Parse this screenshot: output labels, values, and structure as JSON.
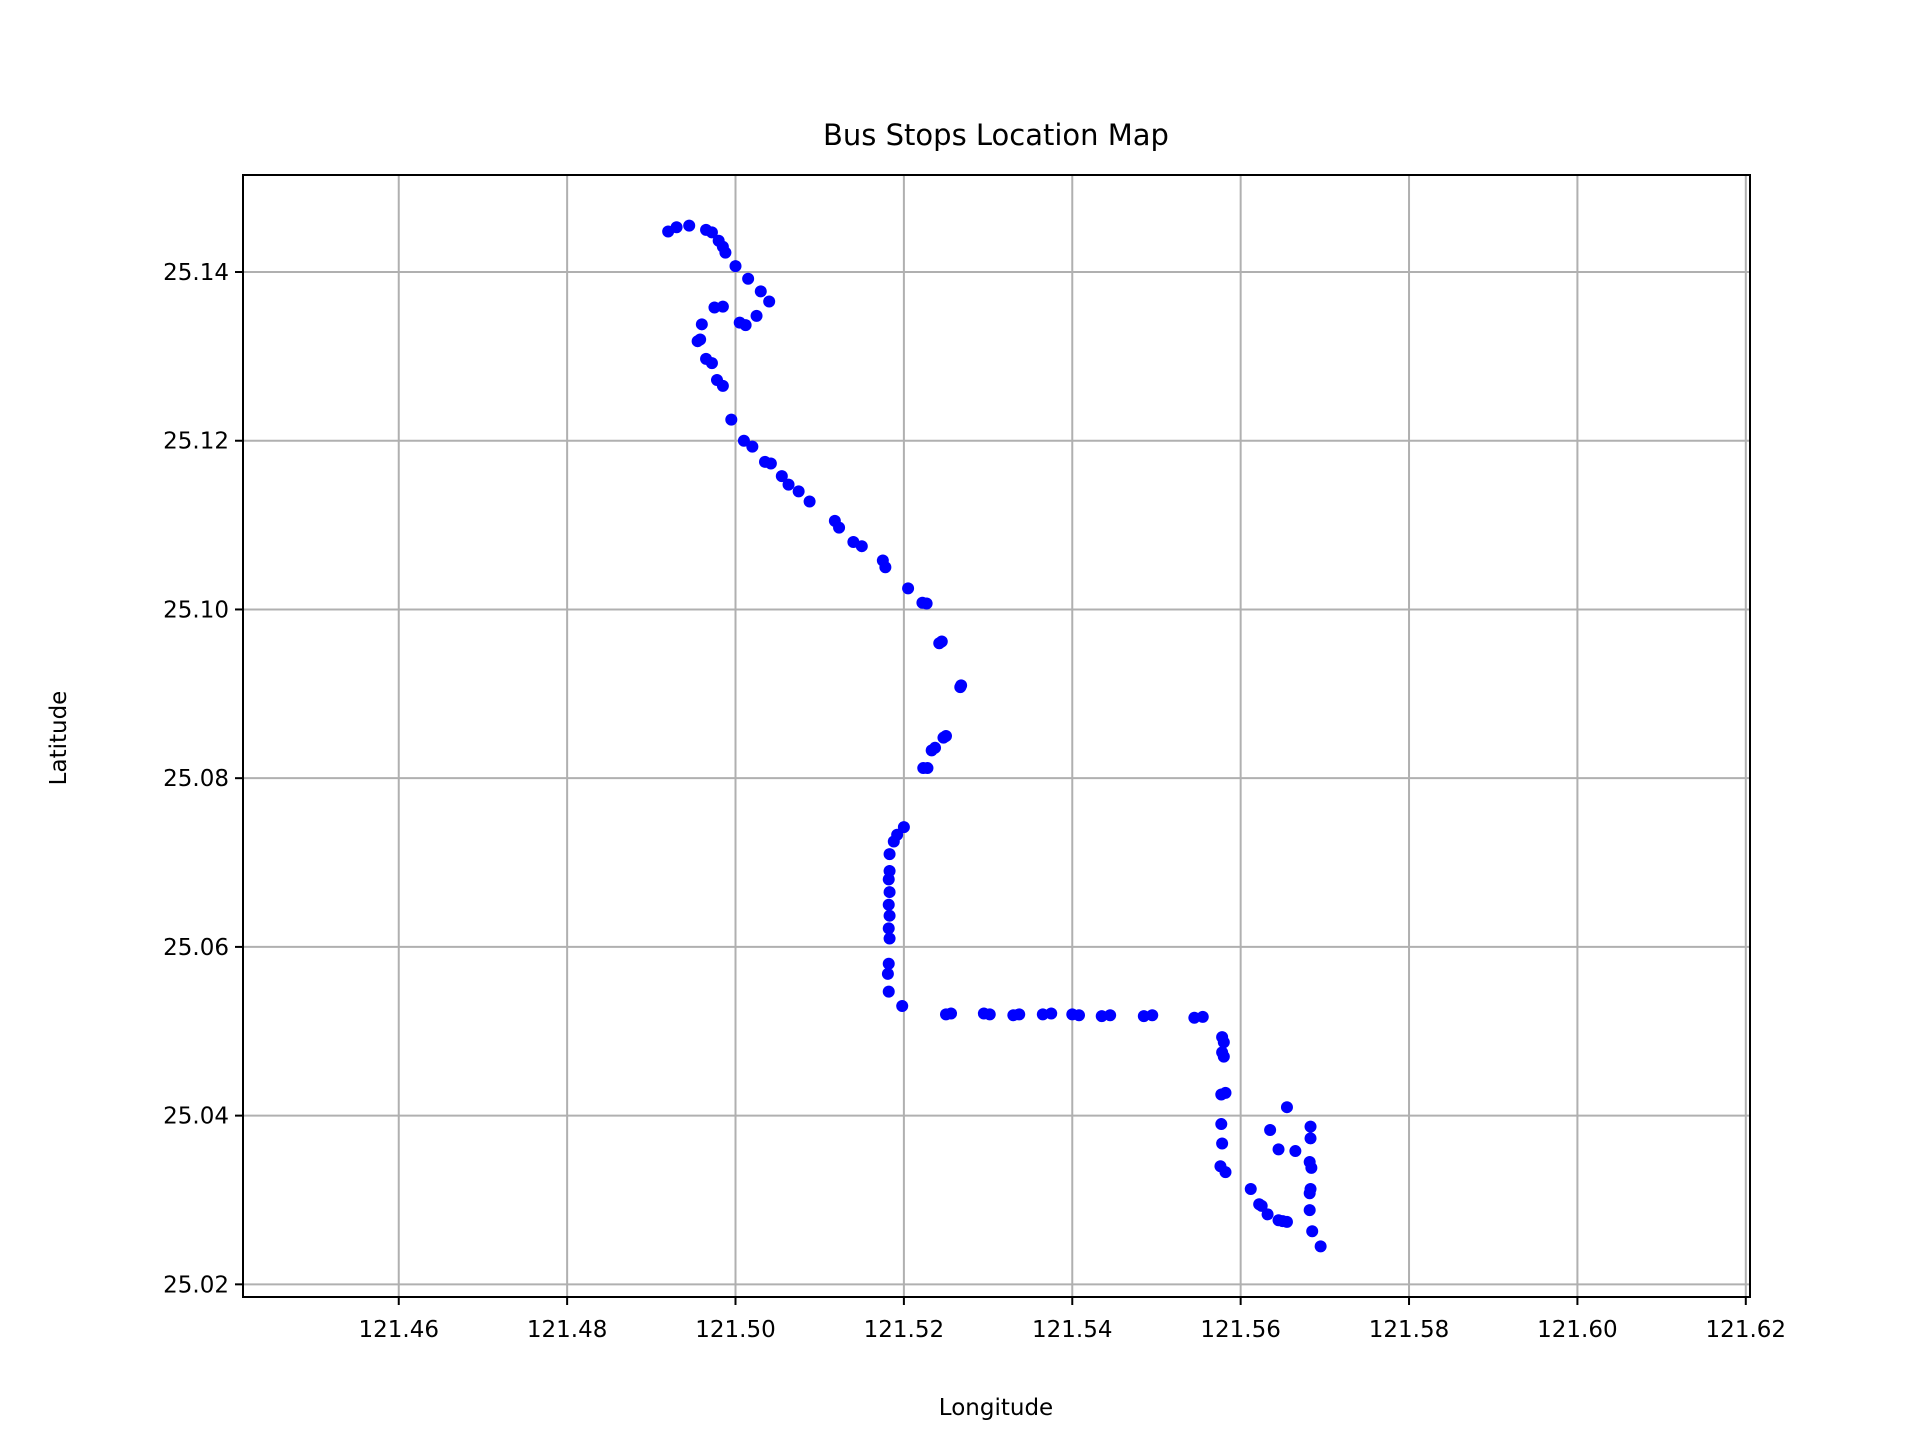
{
  "chart_data": {
    "type": "scatter",
    "title": "Bus Stops Location Map",
    "xlabel": "Longitude",
    "ylabel": "Latitude",
    "xlim": [
      121.4415,
      121.6205
    ],
    "ylim": [
      25.0185,
      25.1515
    ],
    "xticks": [
      121.46,
      121.48,
      121.5,
      121.52,
      121.54,
      121.56,
      121.58,
      121.6,
      121.62
    ],
    "xtick_labels": [
      "121.46",
      "121.48",
      "121.50",
      "121.52",
      "121.54",
      "121.56",
      "121.58",
      "121.60",
      "121.62"
    ],
    "yticks": [
      25.02,
      25.04,
      25.06,
      25.08,
      25.1,
      25.12,
      25.14
    ],
    "ytick_labels": [
      "25.02",
      "25.04",
      "25.06",
      "25.08",
      "25.10",
      "25.12",
      "25.14"
    ],
    "grid": true,
    "marker_color": "#0000ff",
    "points": [
      [
        121.492,
        25.1448
      ],
      [
        121.493,
        25.1453
      ],
      [
        121.4945,
        25.1455
      ],
      [
        121.4965,
        25.145
      ],
      [
        121.4972,
        25.1447
      ],
      [
        121.498,
        25.1437
      ],
      [
        121.4985,
        25.143
      ],
      [
        121.4988,
        25.1423
      ],
      [
        121.5,
        25.1407
      ],
      [
        121.5015,
        25.1392
      ],
      [
        121.503,
        25.1377
      ],
      [
        121.504,
        25.1365
      ],
      [
        121.5025,
        25.1348
      ],
      [
        121.5012,
        25.1337
      ],
      [
        121.5005,
        25.134
      ],
      [
        121.4975,
        25.1358
      ],
      [
        121.4985,
        25.1359
      ],
      [
        121.496,
        25.1338
      ],
      [
        121.4958,
        25.132
      ],
      [
        121.4955,
        25.1318
      ],
      [
        121.4965,
        25.1297
      ],
      [
        121.4972,
        25.1292
      ],
      [
        121.4978,
        25.1272
      ],
      [
        121.4985,
        25.1265
      ],
      [
        121.4995,
        25.1225
      ],
      [
        121.501,
        25.12
      ],
      [
        121.502,
        25.1193
      ],
      [
        121.5035,
        25.1175
      ],
      [
        121.5042,
        25.1173
      ],
      [
        121.5055,
        25.1158
      ],
      [
        121.5063,
        25.1148
      ],
      [
        121.5075,
        25.114
      ],
      [
        121.5088,
        25.1128
      ],
      [
        121.5118,
        25.1105
      ],
      [
        121.5123,
        25.1097
      ],
      [
        121.514,
        25.108
      ],
      [
        121.515,
        25.1075
      ],
      [
        121.5175,
        25.1058
      ],
      [
        121.5178,
        25.105
      ],
      [
        121.5205,
        25.1025
      ],
      [
        121.5222,
        25.1008
      ],
      [
        121.5227,
        25.1007
      ],
      [
        121.5242,
        25.096
      ],
      [
        121.5245,
        25.0962
      ],
      [
        121.5267,
        25.0908
      ],
      [
        121.5268,
        25.091
      ],
      [
        121.5247,
        25.0848
      ],
      [
        121.525,
        25.085
      ],
      [
        121.5233,
        25.0833
      ],
      [
        121.5237,
        25.0836
      ],
      [
        121.5223,
        25.0812
      ],
      [
        121.5228,
        25.0812
      ],
      [
        121.52,
        25.0742
      ],
      [
        121.5192,
        25.0733
      ],
      [
        121.5188,
        25.0725
      ],
      [
        121.5183,
        25.071
      ],
      [
        121.5183,
        25.069
      ],
      [
        121.5182,
        25.068
      ],
      [
        121.5183,
        25.0665
      ],
      [
        121.5182,
        25.065
      ],
      [
        121.5183,
        25.0637
      ],
      [
        121.5182,
        25.0622
      ],
      [
        121.5183,
        25.061
      ],
      [
        121.5182,
        25.058
      ],
      [
        121.5181,
        25.0568
      ],
      [
        121.5182,
        25.0547
      ],
      [
        121.5198,
        25.053
      ],
      [
        121.525,
        25.052
      ],
      [
        121.5256,
        25.0521
      ],
      [
        121.5295,
        25.0521
      ],
      [
        121.5302,
        25.052
      ],
      [
        121.533,
        25.0519
      ],
      [
        121.5337,
        25.052
      ],
      [
        121.5365,
        25.052
      ],
      [
        121.5375,
        25.0521
      ],
      [
        121.54,
        25.052
      ],
      [
        121.5408,
        25.0519
      ],
      [
        121.5435,
        25.0518
      ],
      [
        121.5445,
        25.0519
      ],
      [
        121.5485,
        25.0518
      ],
      [
        121.5495,
        25.0519
      ],
      [
        121.5545,
        25.0516
      ],
      [
        121.5555,
        25.0517
      ],
      [
        121.5578,
        25.0493
      ],
      [
        121.558,
        25.0487
      ],
      [
        121.5578,
        25.0475
      ],
      [
        121.558,
        25.047
      ],
      [
        121.5577,
        25.0425
      ],
      [
        121.5582,
        25.0427
      ],
      [
        121.5577,
        25.039
      ],
      [
        121.5578,
        25.0367
      ],
      [
        121.5576,
        25.034
      ],
      [
        121.5582,
        25.0333
      ],
      [
        121.5612,
        25.0313
      ],
      [
        121.5622,
        25.0295
      ],
      [
        121.5625,
        25.0293
      ],
      [
        121.5632,
        25.0283
      ],
      [
        121.5645,
        25.0276
      ],
      [
        121.565,
        25.0275
      ],
      [
        121.5655,
        25.0274
      ],
      [
        121.5635,
        25.0383
      ],
      [
        121.5655,
        25.041
      ],
      [
        121.5645,
        25.036
      ],
      [
        121.5665,
        25.0358
      ],
      [
        121.5683,
        25.0387
      ],
      [
        121.5683,
        25.0373
      ],
      [
        121.5682,
        25.0345
      ],
      [
        121.5684,
        25.0338
      ],
      [
        121.5683,
        25.0313
      ],
      [
        121.5682,
        25.0308
      ],
      [
        121.5682,
        25.0288
      ],
      [
        121.5685,
        25.0263
      ],
      [
        121.5695,
        25.0245
      ]
    ]
  }
}
